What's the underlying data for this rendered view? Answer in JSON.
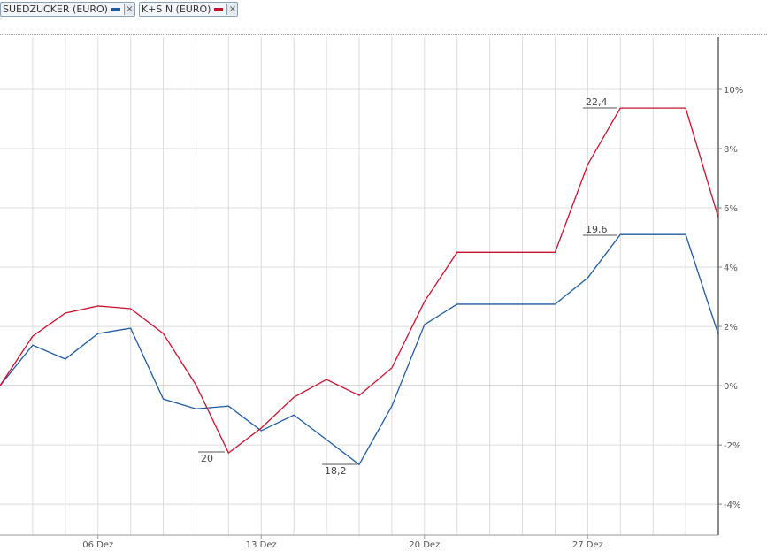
{
  "chart_data": {
    "type": "line",
    "categories": [
      null,
      null,
      null,
      "06 Dez",
      null,
      null,
      null,
      null,
      "13 Dez",
      null,
      null,
      null,
      null,
      "20 Dez",
      null,
      null,
      null,
      null,
      "27 Dez",
      null,
      null,
      null,
      null
    ],
    "series": [
      {
        "name": "SUEDZUCKER (EURO)",
        "color": "#1f5b9e",
        "values": [
          0,
          1.37,
          0.9,
          1.76,
          1.94,
          -0.45,
          -0.78,
          -0.69,
          -1.52,
          -0.99,
          -1.82,
          -2.66,
          -0.69,
          2.06,
          2.75,
          2.75,
          2.75,
          2.75,
          3.64,
          5.1,
          5.1,
          5.1,
          1.73
        ]
      },
      {
        "name": "K+S N (EURO)",
        "color": "#c8102e",
        "values": [
          0,
          1.67,
          2.45,
          2.69,
          2.6,
          1.76,
          0.03,
          -2.27,
          -1.43,
          -0.39,
          0.21,
          -0.33,
          0.6,
          2.84,
          4.5,
          4.5,
          4.5,
          4.5,
          7.46,
          9.37,
          9.37,
          9.37,
          5.67
        ]
      }
    ],
    "ylim": [
      -5.04,
      11.76
    ],
    "yticks": [
      {
        "value": -4,
        "label": "-4%"
      },
      {
        "value": -2,
        "label": "-2%"
      },
      {
        "value": 0,
        "label": "0%"
      },
      {
        "value": 2,
        "label": "2%"
      },
      {
        "value": 4,
        "label": "4%"
      },
      {
        "value": 6,
        "label": "6%"
      },
      {
        "value": 8,
        "label": "8%"
      },
      {
        "value": 10,
        "label": "10%"
      }
    ],
    "grid": true,
    "annotations": [
      "22,4",
      "19,6",
      "20",
      "18,2"
    ]
  }
}
